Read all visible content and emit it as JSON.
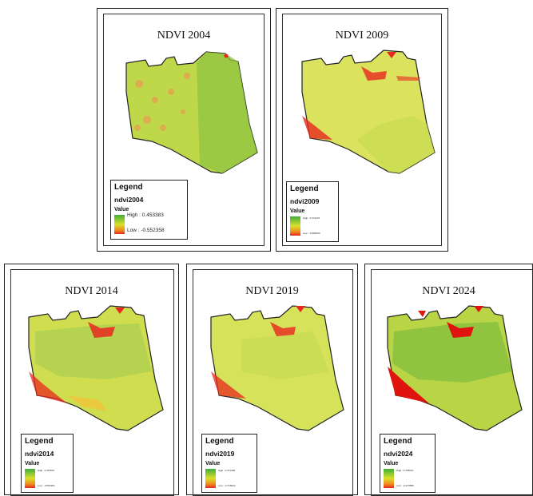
{
  "panels": [
    {
      "title": "NDVI 2004",
      "legend": {
        "heading": "Legend",
        "layer": "ndvi2004",
        "value": "Value",
        "high": "High : 0.453383",
        "low": "Low : -0.552358"
      }
    },
    {
      "title": "NDVI 2009",
      "legend": {
        "heading": "Legend",
        "layer": "ndvi2009",
        "value": "Value",
        "high": "High : 0.371270",
        "low": "Low : -0.588150"
      }
    },
    {
      "title": "NDVI 2014",
      "legend": {
        "heading": "Legend",
        "layer": "ndvi2014",
        "value": "Value",
        "high": "High : 0.367507",
        "low": "Low : -0.551991"
      }
    },
    {
      "title": "NDVI 2019",
      "legend": {
        "heading": "Legend",
        "layer": "ndvi2019",
        "value": "Value",
        "high": "High : 0.371406",
        "low": "Low : -0.716022"
      }
    },
    {
      "title": "NDVI 2024",
      "legend": {
        "heading": "Legend",
        "layer": "ndvi2024",
        "value": "Value",
        "high": "High : 0.478941",
        "low": "Low : -0.477888"
      }
    }
  ],
  "colors": {
    "high": "#3fae3a",
    "mid": "#d9e12a",
    "low": "#e8281e"
  }
}
